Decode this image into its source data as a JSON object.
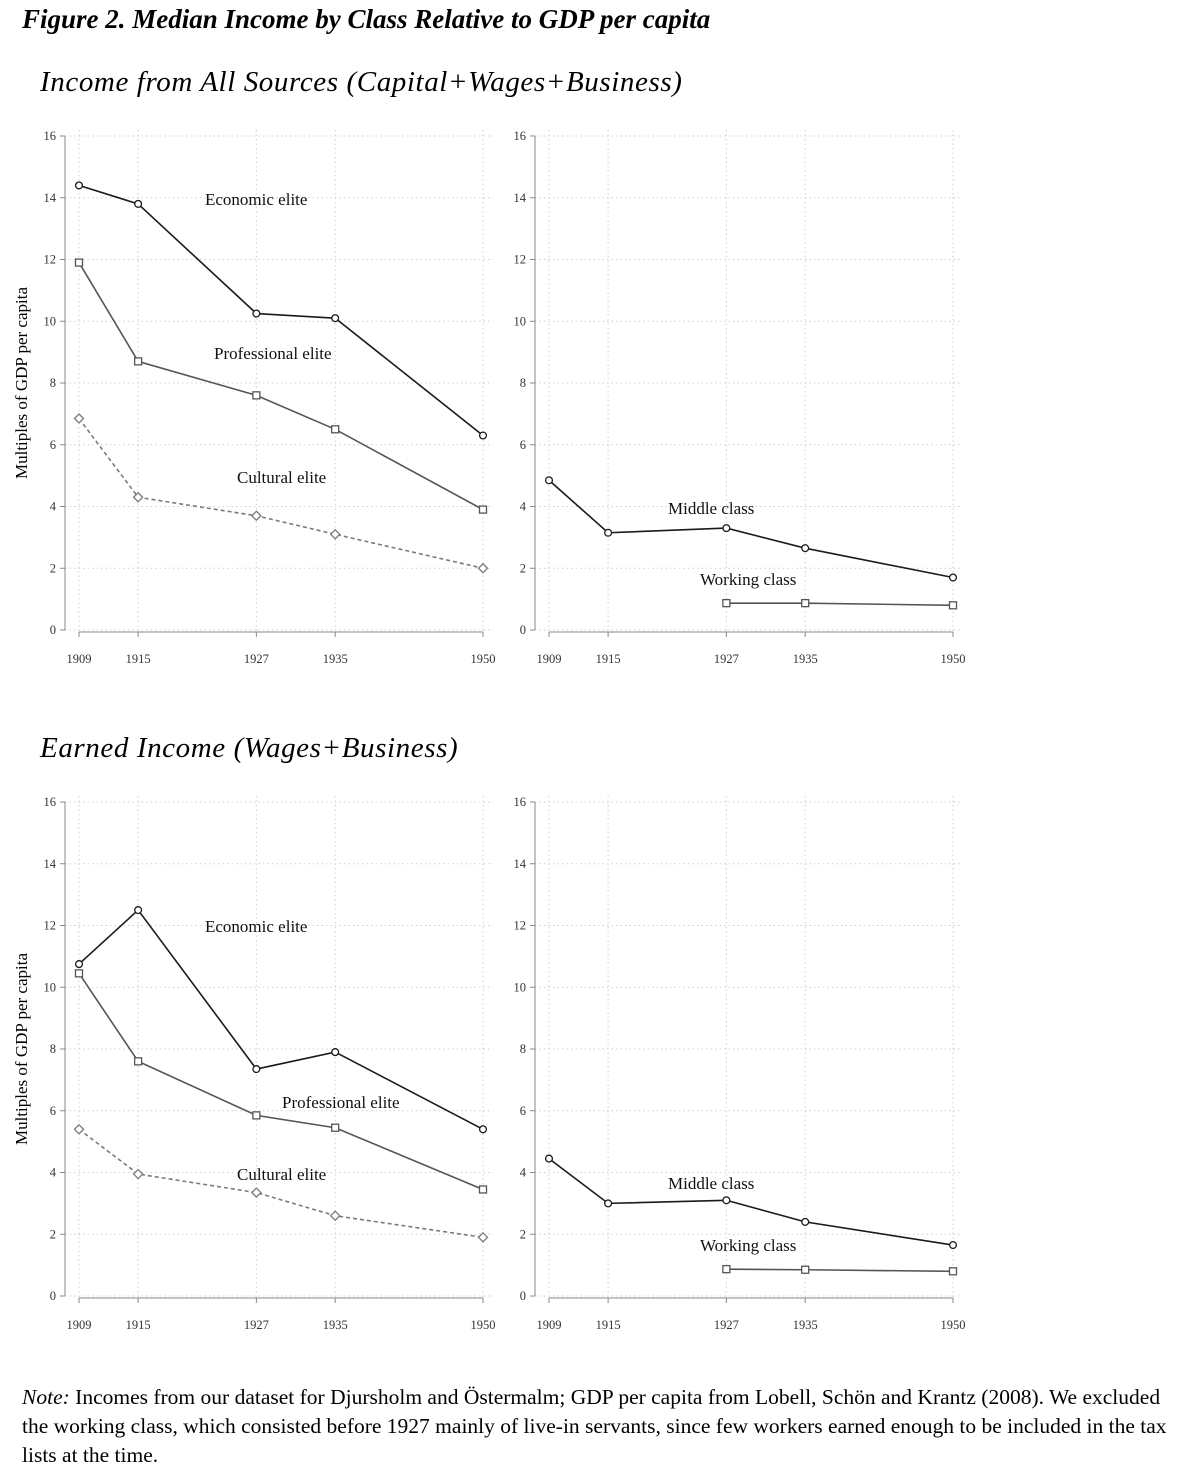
{
  "figure_title": "Figure 2. Median Income by Class Relative to GDP per capita",
  "note": {
    "label": "Note:",
    "text": " Incomes from our dataset for Djursholm and Östermalm; GDP per capita from Lobell, Schön and Krantz (2008). We excluded the working class, which consisted before 1927 mainly of live-in servants, since few workers earned enough to be included in the tax lists at the time."
  },
  "sections": [
    {
      "title": "Income from All Sources (Capital+Wages+Business)"
    },
    {
      "title": "Earned Income (Wages+Business)"
    }
  ],
  "chart_data": [
    {
      "type": "line",
      "section": "Income from All Sources (Capital+Wages+Business)",
      "title": "",
      "xlabel": "",
      "ylabel": "Multiples of GDP per capita",
      "x": [
        1909,
        1915,
        1927,
        1935,
        1950
      ],
      "xlim": [
        1909,
        1950
      ],
      "ylim": [
        0,
        16
      ],
      "yticks": [
        0,
        2,
        4,
        6,
        8,
        10,
        12,
        14,
        16
      ],
      "grid": true,
      "series": [
        {
          "name": "Economic elite",
          "marker": "circle",
          "style": "solid",
          "color": "#1a1a1a",
          "values": [
            14.4,
            13.8,
            10.25,
            10.1,
            6.3
          ]
        },
        {
          "name": "Professional elite",
          "marker": "square",
          "style": "solid",
          "color": "#555555",
          "values": [
            11.9,
            8.7,
            7.6,
            6.5,
            3.9
          ]
        },
        {
          "name": "Cultural elite",
          "marker": "diamond",
          "style": "dashed",
          "color": "#7a7a7a",
          "values": [
            6.85,
            4.3,
            3.7,
            3.1,
            2.0
          ]
        }
      ]
    },
    {
      "type": "line",
      "section": "Income from All Sources (Capital+Wages+Business)",
      "title": "",
      "xlabel": "",
      "ylabel": "",
      "x": [
        1909,
        1915,
        1927,
        1935,
        1950
      ],
      "xlim": [
        1909,
        1950
      ],
      "ylim": [
        0,
        16
      ],
      "yticks": [
        0,
        2,
        4,
        6,
        8,
        10,
        12,
        14,
        16
      ],
      "grid": true,
      "series": [
        {
          "name": "Middle class",
          "marker": "circle",
          "style": "solid",
          "color": "#1a1a1a",
          "values": [
            4.85,
            3.15,
            3.3,
            2.65,
            1.7
          ]
        },
        {
          "name": "Working class",
          "marker": "square",
          "style": "solid",
          "color": "#555555",
          "values": [
            null,
            null,
            0.87,
            0.87,
            0.8
          ]
        }
      ]
    },
    {
      "type": "line",
      "section": "Earned Income (Wages+Business)",
      "title": "",
      "xlabel": "",
      "ylabel": "Multiples of GDP per capita",
      "x": [
        1909,
        1915,
        1927,
        1935,
        1950
      ],
      "xlim": [
        1909,
        1950
      ],
      "ylim": [
        0,
        16
      ],
      "yticks": [
        0,
        2,
        4,
        6,
        8,
        10,
        12,
        14,
        16
      ],
      "grid": true,
      "series": [
        {
          "name": "Economic elite",
          "marker": "circle",
          "style": "solid",
          "color": "#1a1a1a",
          "values": [
            10.75,
            12.5,
            7.35,
            7.9,
            5.4
          ]
        },
        {
          "name": "Professional elite",
          "marker": "square",
          "style": "solid",
          "color": "#555555",
          "values": [
            10.45,
            7.6,
            5.85,
            5.45,
            3.45
          ]
        },
        {
          "name": "Cultural elite",
          "marker": "diamond",
          "style": "dashed",
          "color": "#7a7a7a",
          "values": [
            5.4,
            3.95,
            3.35,
            2.6,
            1.9
          ]
        }
      ]
    },
    {
      "type": "line",
      "section": "Earned Income (Wages+Business)",
      "title": "",
      "xlabel": "",
      "ylabel": "",
      "x": [
        1909,
        1915,
        1927,
        1935,
        1950
      ],
      "xlim": [
        1909,
        1950
      ],
      "ylim": [
        0,
        16
      ],
      "yticks": [
        0,
        2,
        4,
        6,
        8,
        10,
        12,
        14,
        16
      ],
      "grid": true,
      "series": [
        {
          "name": "Middle class",
          "marker": "circle",
          "style": "solid",
          "color": "#1a1a1a",
          "values": [
            4.45,
            3.0,
            3.1,
            2.4,
            1.65
          ]
        },
        {
          "name": "Working class",
          "marker": "square",
          "style": "solid",
          "color": "#555555",
          "values": [
            null,
            null,
            0.87,
            0.85,
            0.8
          ]
        }
      ]
    }
  ]
}
